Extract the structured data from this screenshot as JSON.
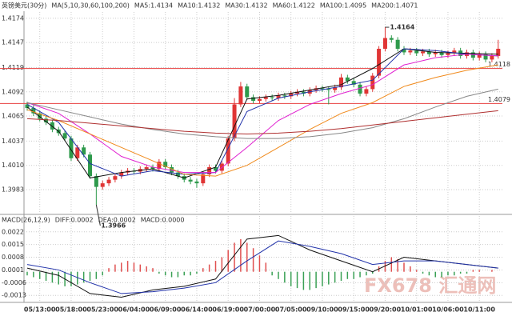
{
  "chart_data": [
    {
      "type": "candlestick",
      "title": "英镑美元(30分)",
      "legend_title": "MA(5,10,30,60,100,200)",
      "categories": [
        null,
        null,
        "05/13:00",
        null,
        null,
        null,
        null,
        "05/18:00",
        null,
        null,
        null,
        null,
        "05/23:00",
        null,
        null,
        null,
        null,
        "06/04:00",
        null,
        null,
        null,
        null,
        "06/09:00",
        null,
        null,
        null,
        null,
        "06/14:00",
        null,
        null,
        null,
        null,
        "06/19:00",
        null,
        null,
        null,
        null,
        "07/00:00",
        null,
        null,
        null,
        null,
        "07/05:00",
        null,
        null,
        null,
        null,
        "09/10:00",
        null,
        null,
        null,
        null,
        "09/15:00",
        null,
        null,
        null,
        null,
        "09/20:00",
        null,
        null,
        null,
        null,
        "10/01:00",
        null,
        null,
        null,
        null,
        "10/06:00",
        null,
        null,
        null,
        null,
        "10/11:00",
        null,
        null,
        null
      ],
      "open": [
        1.4078,
        1.4074,
        1.4068,
        1.4062,
        1.4058,
        1.405,
        1.4046,
        1.404,
        1.4018,
        1.403,
        1.4022,
        1.3998,
        1.3986,
        1.399,
        1.3994,
        1.3998,
        1.4002,
        1.4004,
        1.4003,
        1.4006,
        1.4008,
        1.4006,
        1.4014,
        1.4008,
        1.4002,
        1.3998,
        1.3994,
        1.3992,
        1.399,
        1.4,
        1.4008,
        1.4004,
        1.4012,
        1.404,
        1.4078,
        1.4098,
        1.4086,
        1.4082,
        1.4084,
        1.4086,
        1.4085,
        1.4088,
        1.4087,
        1.409,
        1.4092,
        1.409,
        1.4094,
        1.4096,
        1.4095,
        1.4094,
        1.4097,
        1.4108,
        1.4104,
        1.41,
        1.409,
        1.4095,
        1.411,
        1.414,
        1.4152,
        1.415,
        1.414,
        1.4136,
        1.4138,
        1.4135,
        1.4137,
        1.4134,
        1.4136,
        1.4133,
        1.4135,
        1.4138,
        1.4132,
        1.4136,
        1.413,
        1.4134,
        1.4128,
        1.4132
      ],
      "high": [
        1.4081,
        1.4077,
        1.4071,
        1.4065,
        1.4061,
        1.4053,
        1.4049,
        1.4043,
        1.4033,
        1.4033,
        1.4025,
        1.4001,
        1.3993,
        1.3997,
        1.4001,
        1.4005,
        1.4007,
        1.4007,
        1.4009,
        1.4011,
        1.4011,
        1.4017,
        1.4017,
        1.4011,
        1.4005,
        1.4001,
        1.3997,
        1.3995,
        1.4003,
        1.4011,
        1.4011,
        1.4015,
        1.4043,
        1.4085,
        1.4103,
        1.4101,
        1.4089,
        1.4087,
        1.4089,
        1.4089,
        1.4091,
        1.4091,
        1.4093,
        1.4095,
        1.4095,
        1.4097,
        1.4099,
        1.4099,
        1.4098,
        1.41,
        1.4112,
        1.4111,
        1.4107,
        1.4103,
        1.4098,
        1.4113,
        1.4143,
        1.4164,
        1.4155,
        1.4153,
        1.4143,
        1.4141,
        1.4141,
        1.414,
        1.414,
        1.4139,
        1.4139,
        1.4138,
        1.4141,
        1.4141,
        1.4139,
        1.4139,
        1.4137,
        1.4137,
        1.4135,
        1.415
      ],
      "low": [
        1.4071,
        1.4065,
        1.4059,
        1.4055,
        1.4047,
        1.4043,
        1.4037,
        1.4015,
        1.4015,
        1.4019,
        1.3995,
        1.3966,
        1.3983,
        1.3987,
        1.3991,
        1.3995,
        1.3999,
        1.4,
        1.4,
        1.4003,
        1.4003,
        1.4003,
        1.4005,
        1.3999,
        1.3995,
        1.3991,
        1.3989,
        1.3985,
        1.3987,
        1.3997,
        1.4001,
        1.4001,
        1.4009,
        1.4037,
        1.4075,
        1.4083,
        1.4079,
        1.4079,
        1.4081,
        1.4082,
        1.4082,
        1.4084,
        1.4084,
        1.4087,
        1.4087,
        1.4087,
        1.4091,
        1.4092,
        1.4078,
        1.4091,
        1.4094,
        1.4101,
        1.4097,
        1.4087,
        1.4087,
        1.4092,
        1.4107,
        1.4137,
        1.4147,
        1.4137,
        1.4133,
        1.4133,
        1.4132,
        1.4132,
        1.4131,
        1.4131,
        1.413,
        1.413,
        1.4132,
        1.4129,
        1.4129,
        1.4127,
        1.4127,
        1.4125,
        1.4125,
        1.4129
      ],
      "close": [
        1.4074,
        1.4068,
        1.4062,
        1.4058,
        1.405,
        1.4046,
        1.404,
        1.4018,
        1.403,
        1.4022,
        1.3998,
        1.3986,
        1.399,
        1.3994,
        1.3998,
        1.4002,
        1.4004,
        1.4003,
        1.4006,
        1.4008,
        1.4006,
        1.4014,
        1.4008,
        1.4002,
        1.3998,
        1.3994,
        1.3992,
        1.399,
        1.4,
        1.4008,
        1.4004,
        1.4012,
        1.404,
        1.4078,
        1.4098,
        1.4086,
        1.4082,
        1.4084,
        1.4086,
        1.4085,
        1.4088,
        1.4087,
        1.409,
        1.4092,
        1.409,
        1.4094,
        1.4096,
        1.4095,
        1.4094,
        1.4097,
        1.4108,
        1.4104,
        1.41,
        1.409,
        1.4095,
        1.411,
        1.414,
        1.4152,
        1.415,
        1.414,
        1.4136,
        1.4138,
        1.4135,
        1.4137,
        1.4134,
        1.4136,
        1.4133,
        1.4135,
        1.4138,
        1.4132,
        1.4136,
        1.413,
        1.4134,
        1.4128,
        1.4132,
        1.414
      ],
      "up_color": "#e03535",
      "down_color": "#2e9a4c",
      "ylim": [
        1.3958,
        1.4181
      ],
      "yticks": [
        1.3983,
        {
          "value": 1.401,
          "label": "1.4010"
        },
        1.4037,
        1.4065,
        1.4092,
        1.4119,
        1.4147,
        1.4174
      ],
      "lines": [
        {
          "name": "MA5:1.4134",
          "color": "#111111",
          "x": [
            0,
            5,
            10,
            15,
            20,
            25,
            30,
            35,
            40,
            45,
            50,
            55,
            60,
            65,
            70,
            75
          ],
          "values": [
            1.4075,
            1.4048,
            1.3996,
            1.4002,
            1.4006,
            1.3996,
            1.4008,
            1.4084,
            1.4088,
            1.4094,
            1.41,
            1.4118,
            1.414,
            1.4136,
            1.4135,
            1.4134
          ]
        },
        {
          "name": "MA10:1.4132",
          "color": "#2233aa",
          "x": [
            0,
            5,
            10,
            15,
            20,
            25,
            30,
            35,
            40,
            45,
            50,
            55,
            60,
            65,
            70,
            75
          ],
          "values": [
            1.4078,
            1.4058,
            1.4012,
            1.3998,
            1.4004,
            1.4,
            1.4002,
            1.407,
            1.4085,
            1.4092,
            1.4098,
            1.4105,
            1.414,
            1.4138,
            1.4134,
            1.4132
          ]
        },
        {
          "name": "MA30:1.4132",
          "color": "#e020d0",
          "x": [
            0,
            5,
            10,
            15,
            20,
            25,
            30,
            35,
            40,
            45,
            50,
            55,
            60,
            65,
            70,
            75
          ],
          "values": [
            1.408,
            1.4068,
            1.4045,
            1.402,
            1.4008,
            1.4002,
            1.4002,
            1.403,
            1.406,
            1.4078,
            1.409,
            1.41,
            1.4122,
            1.413,
            1.4134,
            1.4132
          ]
        },
        {
          "name": "MA60:1.4122",
          "color": "#f08a1c",
          "x": [
            0,
            5,
            10,
            15,
            20,
            25,
            30,
            35,
            40,
            45,
            50,
            55,
            60,
            65,
            70,
            75
          ],
          "values": [
            1.4072,
            1.406,
            1.4045,
            1.403,
            1.4015,
            1.4,
            1.3998,
            1.401,
            1.403,
            1.405,
            1.4068,
            1.408,
            1.4098,
            1.4108,
            1.4116,
            1.4122
          ]
        },
        {
          "name": "MA100:1.4095",
          "color": "#888888",
          "x": [
            0,
            5,
            10,
            15,
            20,
            25,
            30,
            35,
            40,
            45,
            50,
            55,
            60,
            65,
            70,
            75
          ],
          "values": [
            1.408,
            1.4072,
            1.4064,
            1.4056,
            1.405,
            1.4045,
            1.4042,
            1.404,
            1.404,
            1.4042,
            1.4046,
            1.4052,
            1.4062,
            1.4075,
            1.4087,
            1.4095
          ]
        },
        {
          "name": "MA200:1.4071",
          "color": "#b03030",
          "x": [
            0,
            5,
            10,
            15,
            20,
            25,
            30,
            35,
            40,
            45,
            50,
            55,
            60,
            65,
            70,
            75
          ],
          "values": [
            1.4062,
            1.406,
            1.4057,
            1.4054,
            1.4051,
            1.4048,
            1.4046,
            1.4045,
            1.4046,
            1.4048,
            1.4051,
            1.4055,
            1.4059,
            1.4063,
            1.4067,
            1.4071
          ]
        }
      ],
      "hlines": [
        1.4118,
        1.4079
      ],
      "hline_color": "#e84040",
      "annotations": [
        1.4164,
        1.3966
      ]
    },
    {
      "type": "macd",
      "title": "MACD(26,12,9)",
      "histogram_name": "MACD:0.0000",
      "values": [
        -0.0002,
        -0.0003,
        -0.0004,
        -0.0005,
        -0.0006,
        -0.0007,
        -0.0008,
        -0.0008,
        -0.0007,
        -0.0006,
        -0.0005,
        -0.0004,
        -0.0002,
        0.0002,
        0.0004,
        0.0005,
        0.0006,
        0.0005,
        0.0004,
        0.0003,
        0.0002,
        -0.0001,
        -0.0002,
        -0.0003,
        -0.0003,
        -0.0002,
        -0.0002,
        -0.0001,
        0.0002,
        0.0004,
        0.0006,
        0.0008,
        0.0012,
        0.0016,
        0.0018,
        0.0016,
        0.0013,
        0.0009,
        0.0005,
        -0.0002,
        -0.0004,
        -0.0006,
        -0.0008,
        -0.0009,
        -0.001,
        -0.001,
        -0.0009,
        -0.0008,
        -0.0007,
        -0.0006,
        -0.0005,
        -0.0004,
        -0.0004,
        -0.0003,
        -0.0002,
        -0.0001,
        0.0003,
        0.0006,
        0.0008,
        0.0007,
        0.0005,
        0.0003,
        0.0001,
        -0.0001,
        -0.0002,
        -0.0003,
        -0.0003,
        -0.0002,
        -0.0002,
        -0.0001,
        -0.0001,
        0.0001,
        0.0001,
        0.0,
        0.0001,
        0.0
      ],
      "pos_color": "#e05050",
      "neg_color": "#3aa055",
      "histogram_color": "#e020d0",
      "ylim": [
        -0.0016,
        0.0025
      ],
      "yticks": [
        -0.0013,
        -0.0006,
        0.0001,
        0.0008,
        0.0015,
        0.0022
      ],
      "series": [
        {
          "name": "DIFF:0.0002",
          "color": "#111111",
          "x": [
            0,
            5,
            10,
            15,
            20,
            25,
            30,
            35,
            40,
            45,
            50,
            55,
            60,
            65,
            70,
            75
          ],
          "values": [
            0.0002,
            -0.0002,
            -0.0012,
            -0.0014,
            -0.001,
            -0.0008,
            -0.0004,
            0.0018,
            0.002,
            0.0012,
            0.0006,
            0.0,
            0.0008,
            0.0006,
            0.0004,
            0.0002
          ]
        },
        {
          "name": "DEA:0.0002",
          "color": "#2233aa",
          "x": [
            0,
            5,
            10,
            15,
            20,
            25,
            30,
            35,
            40,
            45,
            50,
            55,
            60,
            65,
            70,
            75
          ],
          "values": [
            0.0004,
            0.0001,
            -0.0006,
            -0.0012,
            -0.0011,
            -0.0009,
            -0.0006,
            0.0006,
            0.0017,
            0.0014,
            0.001,
            0.0004,
            0.0006,
            0.0006,
            0.0004,
            0.0002
          ]
        }
      ]
    }
  ],
  "watermark": "FX678 汇通网"
}
